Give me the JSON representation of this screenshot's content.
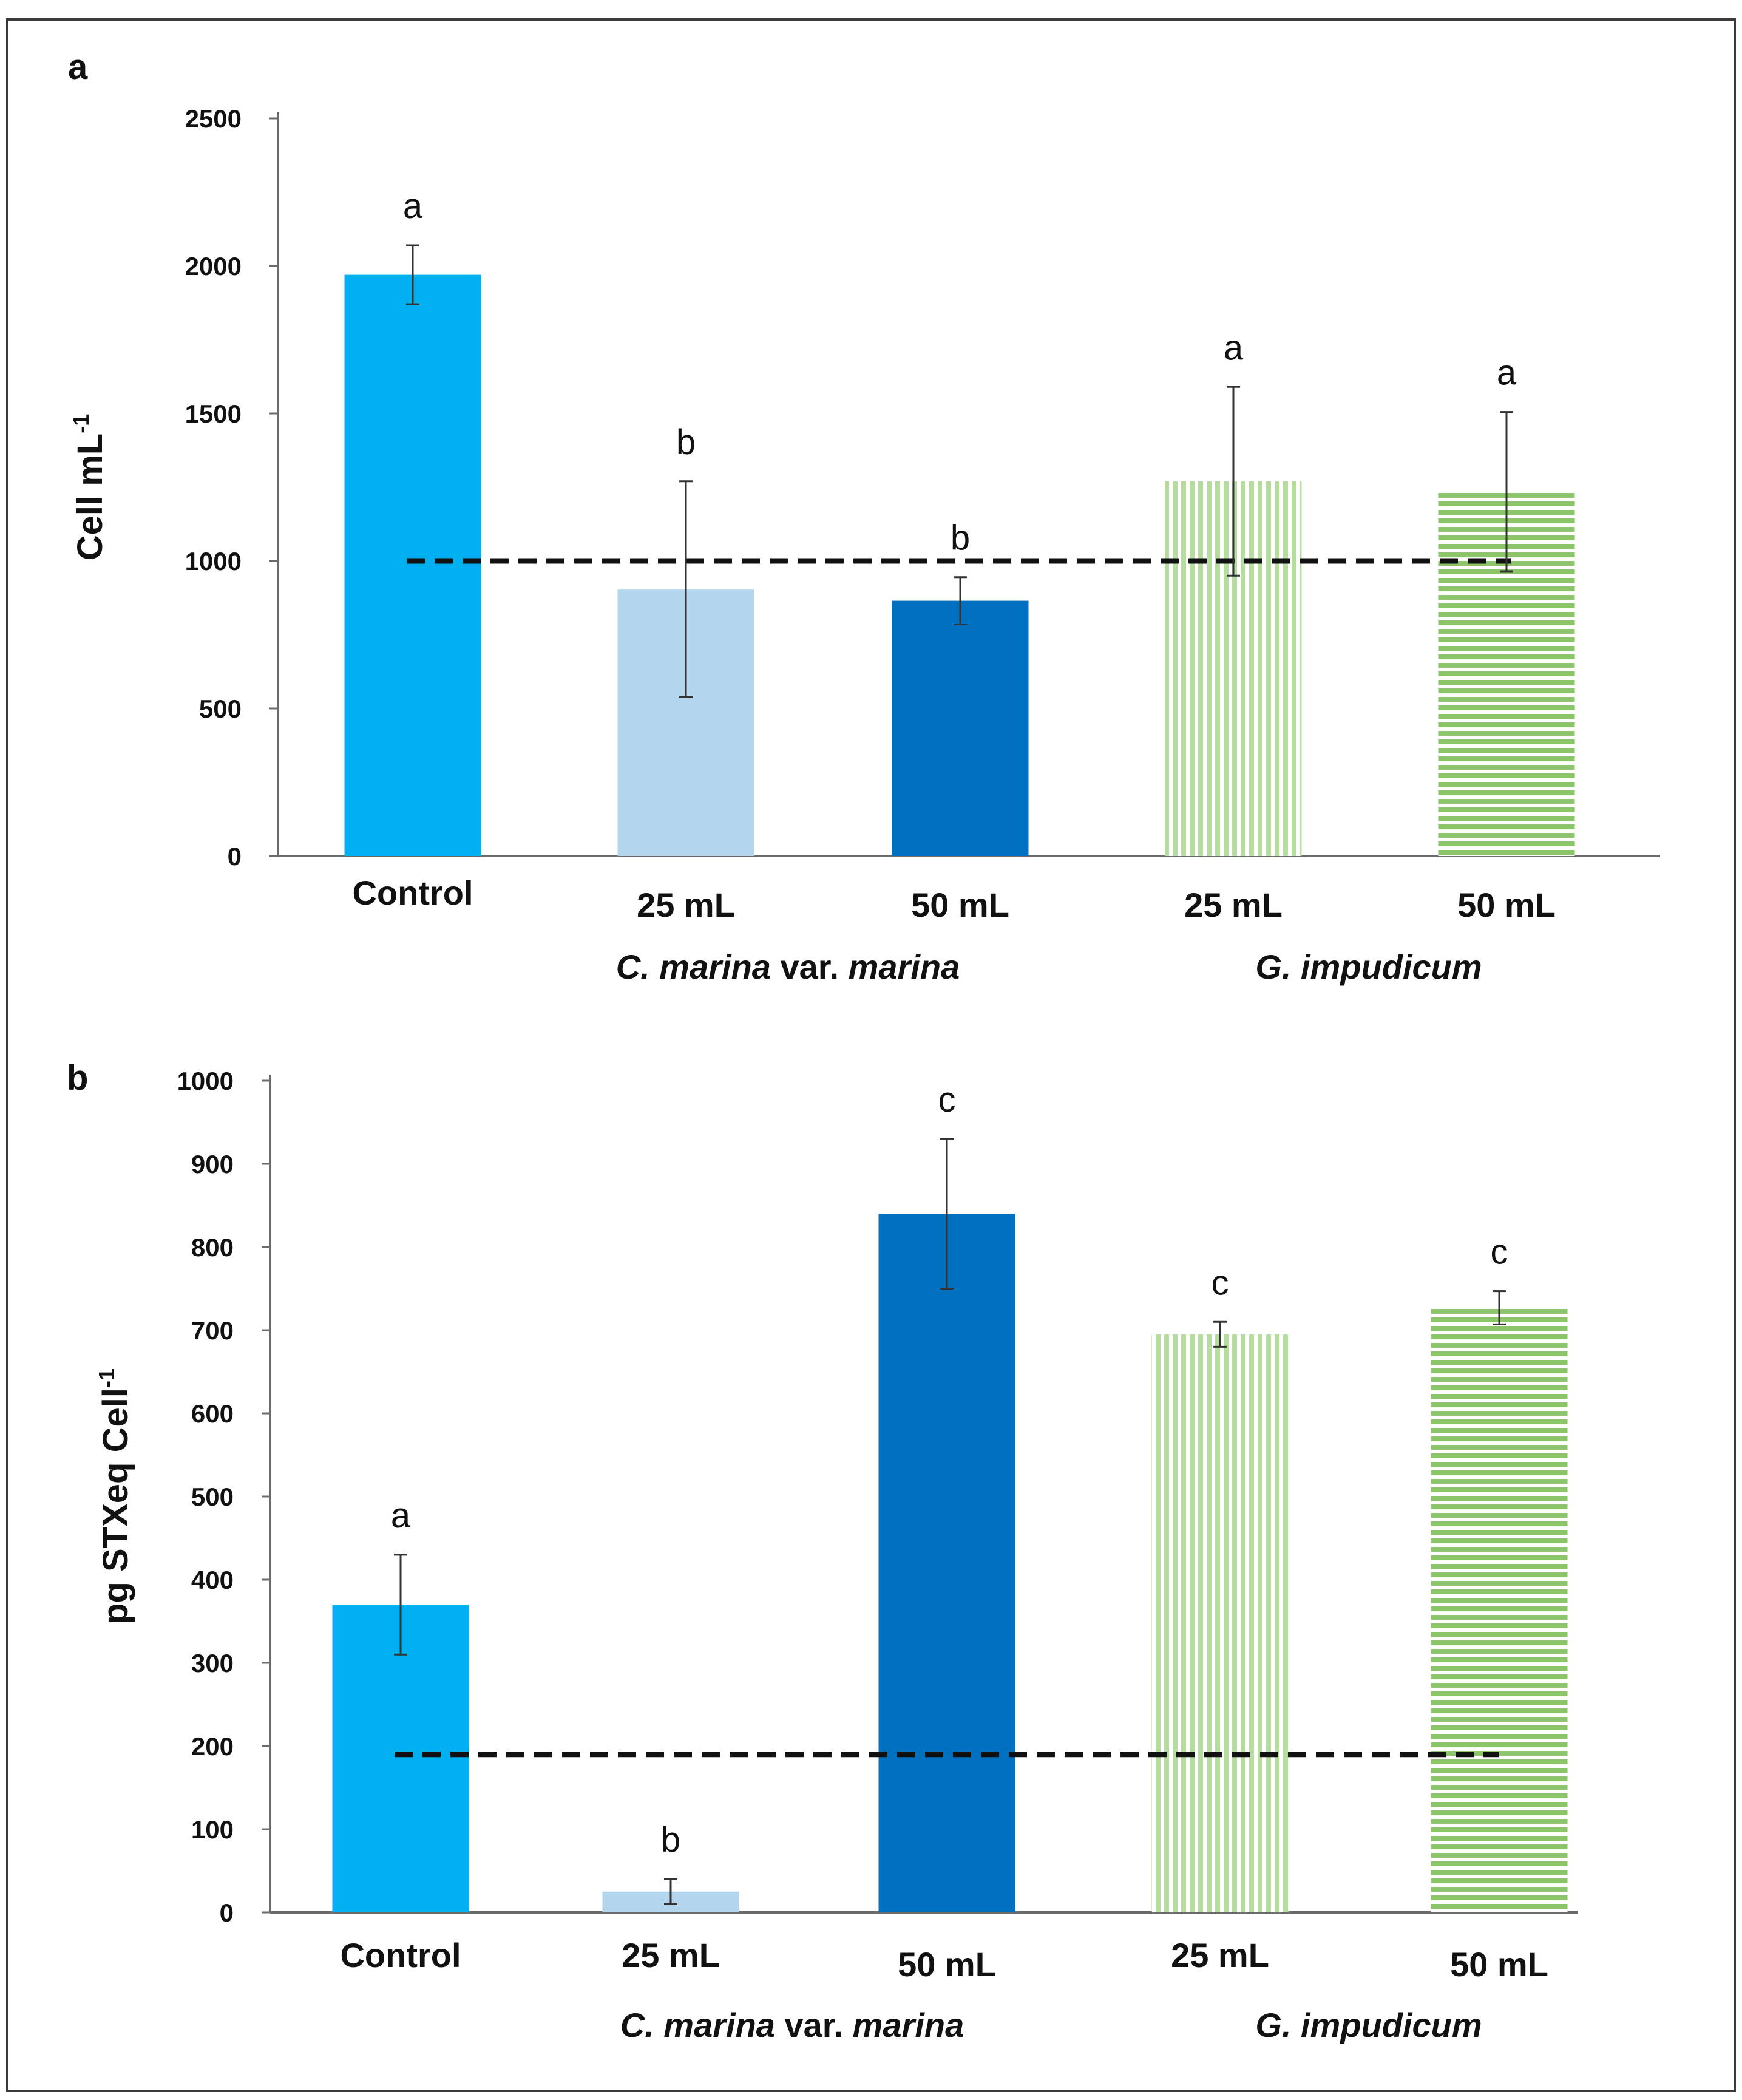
{
  "chart_data": [
    {
      "panel_label": "a",
      "type": "bar",
      "ylabel_main": "Cell mL",
      "ylabel_sup": "-1",
      "ylim": [
        0,
        2500
      ],
      "yticks": [
        "0",
        "500",
        "1000",
        "1500",
        "2000",
        "2500"
      ],
      "categories": [
        "Control",
        "25 mL",
        "50 mL",
        "25 mL",
        "50 mL"
      ],
      "group_labels": [
        {
          "parts": [
            {
              "text": "C. marina",
              "italic": true
            },
            {
              "text": " var. ",
              "italic": false
            },
            {
              "text": "marina",
              "italic": true
            }
          ]
        },
        {
          "parts": [
            {
              "text": "G. impudicum",
              "italic": true
            }
          ]
        }
      ],
      "values": [
        1970,
        905,
        865,
        1270,
        1235
      ],
      "errors": [
        100,
        365,
        80,
        320,
        270
      ],
      "significance": [
        "a",
        "b",
        "b",
        "a",
        "a"
      ],
      "reference_line": 1000,
      "bar_colors": [
        "#00b0f0",
        "#b3d6ee",
        "#0070c0",
        "#b6dca0",
        "#8cc46a"
      ],
      "bar_patterns": [
        "solid",
        "solid",
        "solid",
        "vertical-stripes",
        "horizontal-stripes"
      ]
    },
    {
      "panel_label": "b",
      "type": "bar",
      "ylabel_main": "pg STXeq Cell",
      "ylabel_sup": "-1",
      "ylim": [
        0,
        1000
      ],
      "yticks": [
        "0",
        "100",
        "200",
        "300",
        "400",
        "500",
        "600",
        "700",
        "800",
        "900",
        "1000"
      ],
      "categories": [
        "Control",
        "25 mL",
        "50 mL",
        "25 mL",
        "50 mL"
      ],
      "group_labels": [
        {
          "parts": [
            {
              "text": "C. marina",
              "italic": true
            },
            {
              "text": " var. ",
              "italic": false
            },
            {
              "text": "marina",
              "italic": true
            }
          ]
        },
        {
          "parts": [
            {
              "text": "G. impudicum",
              "italic": true
            }
          ]
        }
      ],
      "values": [
        370,
        25,
        840,
        695,
        727
      ],
      "errors": [
        60,
        15,
        90,
        15,
        20
      ],
      "significance": [
        "a",
        "b",
        "c",
        "c",
        "c"
      ],
      "reference_line": 190,
      "bar_colors": [
        "#00b0f0",
        "#b3d6ee",
        "#0070c0",
        "#b6dca0",
        "#8cc46a"
      ],
      "bar_patterns": [
        "solid",
        "solid",
        "solid",
        "vertical-stripes",
        "horizontal-stripes"
      ]
    }
  ]
}
